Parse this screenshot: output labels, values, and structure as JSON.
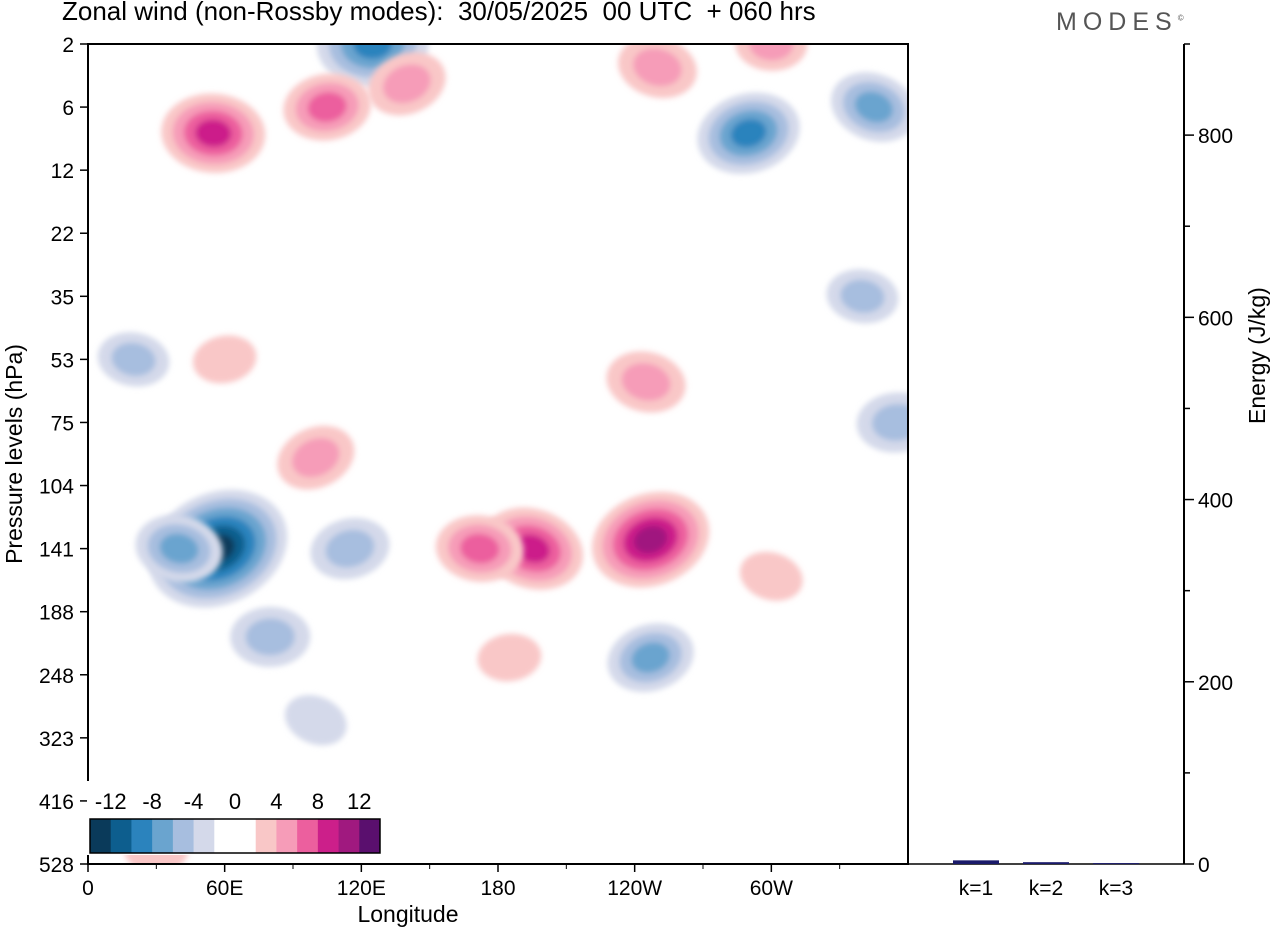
{
  "title": "Zonal wind (non-Rossby modes):  30/05/2025  00 UTC  + 060 hrs",
  "logo": "MODES",
  "chart_data": [
    {
      "type": "heatmap",
      "title": "Zonal wind (non-Rossby modes):  30/05/2025  00 UTC  + 060 hrs",
      "xlabel": "Longitude",
      "ylabel": "Pressure levels (hPa)",
      "x_ticks": [
        "0",
        "60E",
        "120E",
        "180",
        "120W",
        "60W"
      ],
      "y_ticks": [
        "2",
        "6",
        "12",
        "22",
        "35",
        "53",
        "75",
        "104",
        "141",
        "188",
        "248",
        "323",
        "416",
        "528"
      ],
      "colorbar": {
        "labels": [
          "-12",
          "-8",
          "-4",
          "0",
          "4",
          "8",
          "12"
        ],
        "colors": [
          "#0a3a5a",
          "#0d5e8e",
          "#2b83bd",
          "#6aa4cf",
          "#a7bedf",
          "#d4d9ea",
          "#ffffff",
          "#ffffff",
          "#f9c7c7",
          "#f69cb8",
          "#ec5f9e",
          "#cc1f8a",
          "#a0197f",
          "#5a0f6e"
        ]
      },
      "regions": [
        {
          "lon": 57,
          "lev": 141,
          "value": -13
        },
        {
          "lon": 40,
          "lev": 141,
          "value": -6
        },
        {
          "lon": 80,
          "lev": 210,
          "value": -5
        },
        {
          "lon": 115,
          "lev": 141,
          "value": -5
        },
        {
          "lon": 100,
          "lev": 300,
          "value": -3
        },
        {
          "lon": 20,
          "lev": 53,
          "value": -4
        },
        {
          "lon": 125,
          "lev": 2,
          "value": -9
        },
        {
          "lon": 290,
          "lev": 8,
          "value": -8
        },
        {
          "lon": 345,
          "lev": 6,
          "value": -6
        },
        {
          "lon": 340,
          "lev": 35,
          "value": -4
        },
        {
          "lon": 355,
          "lev": 75,
          "value": -5
        },
        {
          "lon": 247,
          "lev": 230,
          "value": -6
        },
        {
          "lon": 195,
          "lev": 141,
          "value": 8
        },
        {
          "lon": 172,
          "lev": 141,
          "value": 6
        },
        {
          "lon": 185,
          "lev": 230,
          "value": 3
        },
        {
          "lon": 247,
          "lev": 135,
          "value": 10
        },
        {
          "lon": 300,
          "lev": 160,
          "value": 3
        },
        {
          "lon": 55,
          "lev": 8,
          "value": 8
        },
        {
          "lon": 105,
          "lev": 6,
          "value": 6
        },
        {
          "lon": 140,
          "lev": 4,
          "value": 5
        },
        {
          "lon": 250,
          "lev": 3,
          "value": 5
        },
        {
          "lon": 300,
          "lev": 2,
          "value": 4
        },
        {
          "lon": 60,
          "lev": 53,
          "value": 3
        },
        {
          "lon": 100,
          "lev": 90,
          "value": 5
        },
        {
          "lon": 245,
          "lev": 60,
          "value": 5
        },
        {
          "lon": 30,
          "lev": 500,
          "value": 3
        }
      ]
    },
    {
      "type": "bar",
      "ylabel": "Energy (J/kg)",
      "categories": [
        "k=1",
        "k=2",
        "k=3"
      ],
      "values": [
        4,
        2,
        1
      ],
      "ylim": [
        0,
        900
      ],
      "y_ticks": [
        "0",
        "200",
        "400",
        "600",
        "800"
      ],
      "color": "#1a1a6a"
    }
  ]
}
